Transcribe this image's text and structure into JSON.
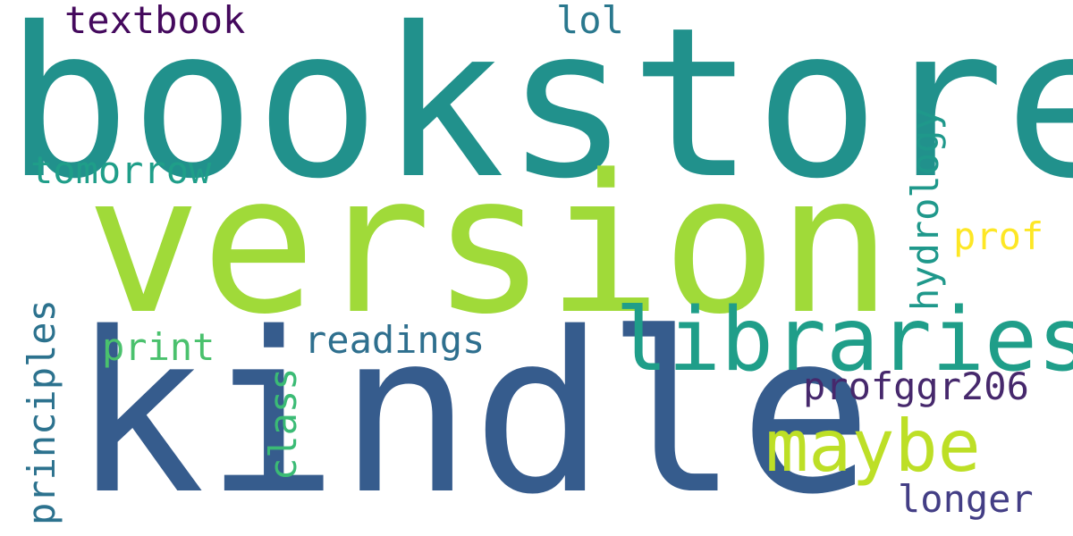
{
  "words": {
    "bookstore": {
      "text": "bookstore",
      "color": "#21918c"
    },
    "version": {
      "text": "version",
      "color": "#a0da39"
    },
    "kindle": {
      "text": "kindle",
      "color": "#365c8d"
    },
    "libraries": {
      "text": "libraries",
      "color": "#1f9e89"
    },
    "maybe": {
      "text": "maybe",
      "color": "#bddf26"
    },
    "textbook": {
      "text": "textbook",
      "color": "#44095d"
    },
    "lol": {
      "text": "lol",
      "color": "#2a788e"
    },
    "tomorrow": {
      "text": "tomorrow",
      "color": "#1f9e89"
    },
    "prof": {
      "text": "prof",
      "color": "#fde725"
    },
    "print": {
      "text": "print",
      "color": "#4ac16d"
    },
    "readings": {
      "text": "readings",
      "color": "#2e6f8e"
    },
    "profggr206": {
      "text": "profggr206",
      "color": "#46286c"
    },
    "longer": {
      "text": "longer",
      "color": "#433e85"
    },
    "principles": {
      "text": "principles",
      "color": "#2c728e"
    },
    "class": {
      "text": "class",
      "color": "#3bbb75"
    },
    "hydrology": {
      "text": "hydrology",
      "color": "#1f988b"
    }
  }
}
